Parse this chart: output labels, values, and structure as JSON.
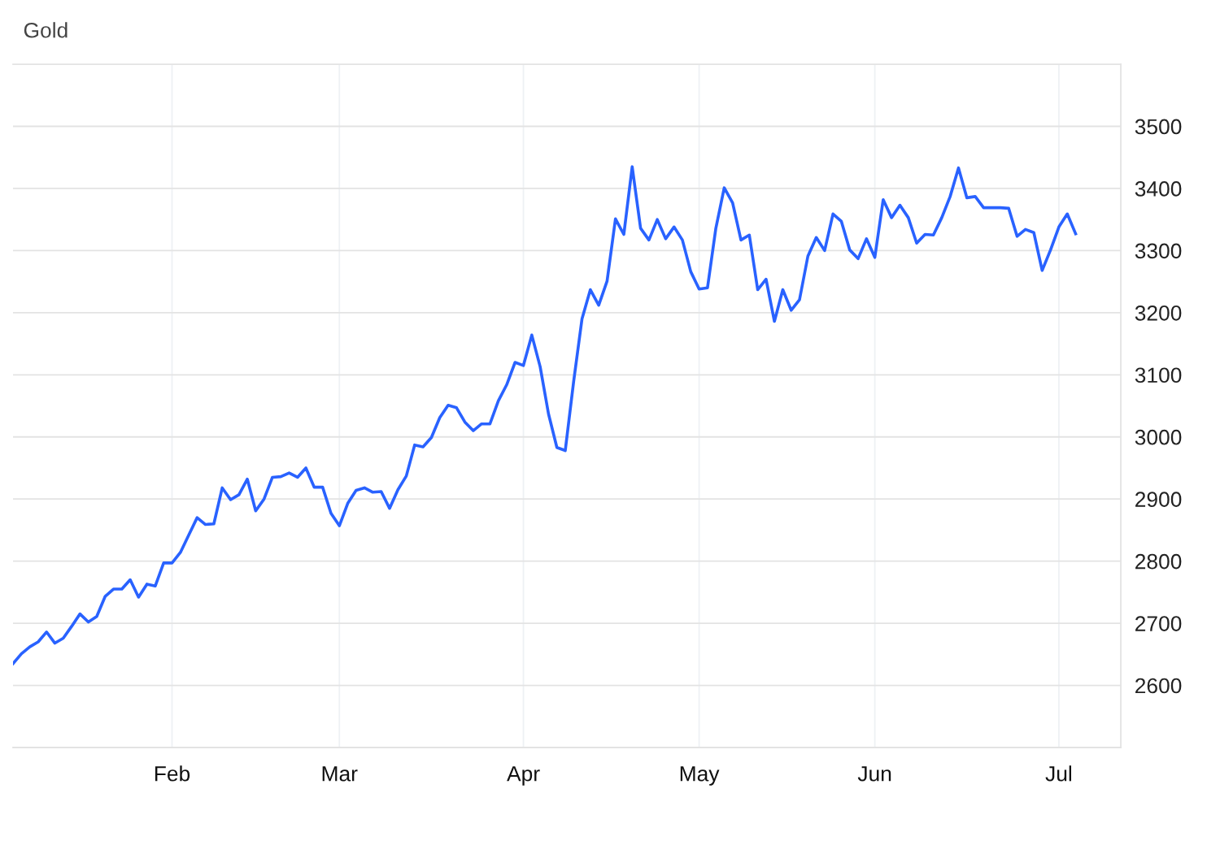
{
  "chart_data": {
    "type": "line",
    "title": "Gold",
    "categories": [
      null,
      null,
      null,
      null,
      null,
      null,
      null,
      null,
      null,
      null,
      null,
      null,
      null,
      null,
      null,
      null,
      null,
      null,
      null,
      "Feb",
      null,
      null,
      null,
      null,
      null,
      null,
      null,
      null,
      null,
      null,
      null,
      null,
      null,
      null,
      null,
      null,
      null,
      null,
      null,
      "Mar",
      null,
      null,
      null,
      null,
      null,
      null,
      null,
      null,
      null,
      null,
      null,
      null,
      null,
      null,
      null,
      null,
      null,
      null,
      null,
      null,
      null,
      "Apr",
      null,
      null,
      null,
      null,
      null,
      null,
      null,
      null,
      null,
      null,
      null,
      null,
      null,
      null,
      null,
      null,
      null,
      null,
      null,
      null,
      "May",
      null,
      null,
      null,
      null,
      null,
      null,
      null,
      null,
      null,
      null,
      null,
      null,
      null,
      null,
      null,
      null,
      null,
      null,
      null,
      null,
      "Jun",
      null,
      null,
      null,
      null,
      null,
      null,
      null,
      null,
      null,
      null,
      null,
      null,
      null,
      null,
      null,
      null,
      null,
      null,
      null,
      null,
      null,
      "Jul",
      null,
      null
    ],
    "series": [
      {
        "color": "#2962ff",
        "values": [
          2635,
          2651,
          2662,
          2670,
          2686,
          2668,
          2676,
          2695,
          2715,
          2702,
          2711,
          2743,
          2755,
          2755,
          2770,
          2742,
          2763,
          2760,
          2797,
          2797,
          2814,
          2842,
          2870,
          2859,
          2860,
          2918,
          2899,
          2907,
          2932,
          2881,
          2900,
          2935,
          2936,
          2942,
          2935,
          2950,
          2919,
          2919,
          2877,
          2857,
          2893,
          2914,
          2918,
          2911,
          2912,
          2885,
          2915,
          2937,
          2987,
          2984,
          2999,
          3031,
          3051,
          3047,
          3024,
          3010,
          3021,
          3021,
          3058,
          3084,
          3120,
          3115,
          3164,
          3113,
          3037,
          2983,
          2978,
          3089,
          3190,
          3237,
          3212,
          3251,
          3351,
          3326,
          3435,
          3336,
          3317,
          3350,
          3319,
          3338,
          3317,
          3266,
          3238,
          3240,
          3336,
          3401,
          3377,
          3317,
          3325,
          3237,
          3254,
          3186,
          3237,
          3204,
          3221,
          3291,
          3321,
          3300,
          3359,
          3347,
          3301,
          3287,
          3319,
          3289,
          3382,
          3353,
          3373,
          3353,
          3312,
          3326,
          3325,
          3353,
          3387,
          3433,
          3385,
          3387,
          3369,
          3369,
          3369,
          3368,
          3323,
          3334,
          3329,
          3268,
          3301,
          3338,
          3359,
          3327
        ]
      }
    ],
    "ylim": [
      2500,
      3600
    ],
    "yticks": [
      2600,
      2700,
      2800,
      2900,
      3000,
      3100,
      3200,
      3300,
      3400,
      3500
    ],
    "grid": true,
    "marker": "none",
    "line_style": "solid"
  }
}
